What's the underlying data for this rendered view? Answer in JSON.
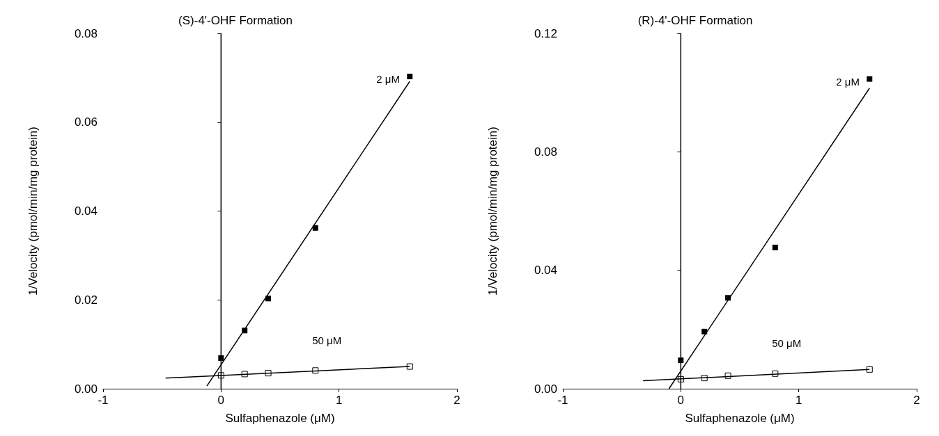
{
  "chart_data": [
    {
      "type": "scatter",
      "title": "(S)-4'-OHF Formation",
      "xlabel": "Sulfaphenazole (μM)",
      "ylabel": "1/Velocity (pmol/min/mg protein)",
      "xlim": [
        -1,
        2
      ],
      "xticks": [
        -1,
        0,
        1,
        2
      ],
      "ylim": [
        0,
        0.08
      ],
      "yticks": [
        {
          "value": 0,
          "label": "0.00"
        },
        0.02,
        0.04,
        0.06,
        0.08
      ],
      "grid": false,
      "legend": false,
      "ref_lines": [
        {
          "axis": "x",
          "value": 0,
          "color": "#000000"
        }
      ],
      "series": [
        {
          "type": "scatter",
          "name": "2 μM",
          "color": "#000000",
          "marker": "square",
          "x": [
            0,
            0.2,
            0.4,
            0.8,
            1.6
          ],
          "values": [
            0.0069,
            0.0131,
            0.0203,
            0.0362,
            0.0703
          ]
        },
        {
          "type": "scatter",
          "name": "50 μM",
          "color": "#000000",
          "marker": "square",
          "x": [
            0,
            0.2,
            0.4,
            0.8,
            1.6
          ],
          "values": [
            0.003,
            0.0033,
            0.0035,
            0.0041,
            0.005
          ]
        },
        {
          "type": "line",
          "color": "#000000",
          "marker": "none",
          "x": [
            -0.12,
            1.6
          ],
          "values": [
            0.0006,
            0.0692
          ]
        },
        {
          "type": "line",
          "color": "#000000",
          "marker": "none",
          "x": [
            -0.47,
            1.6
          ],
          "values": [
            0.0024,
            0.005
          ]
        }
      ]
    },
    {
      "type": "scatter",
      "title": "(R)-4'-OHF Formation",
      "xlabel": "Sulfaphenazole (μM)",
      "ylabel": "1/Velocity (pmol/min/mg protein)",
      "xlim": [
        -1,
        2
      ],
      "xticks": [
        -1,
        0,
        1,
        2
      ],
      "ylim": [
        0,
        0.12
      ],
      "yticks": [
        {
          "value": 0,
          "label": "0.00"
        },
        0.04,
        0.08,
        0.12
      ],
      "grid": false,
      "legend": false,
      "ref_lines": [
        {
          "axis": "x",
          "value": 0,
          "color": "#000000"
        }
      ],
      "series": [
        {
          "type": "scatter",
          "name": "2 μM",
          "color": "#000000",
          "marker": "square",
          "x": [
            0,
            0.2,
            0.4,
            0.8,
            1.6
          ],
          "values": [
            0.0096,
            0.0193,
            0.0307,
            0.0477,
            0.1046
          ]
        },
        {
          "type": "scatter",
          "name": "50 μM",
          "color": "#000000",
          "marker": "square",
          "x": [
            0,
            0.2,
            0.4,
            0.8,
            1.6
          ],
          "values": [
            0.0032,
            0.0036,
            0.0044,
            0.0051,
            0.0065
          ]
        },
        {
          "type": "line",
          "color": "#000000",
          "marker": "none",
          "x": [
            -0.1,
            1.6
          ],
          "values": [
            0,
            0.1015
          ]
        },
        {
          "type": "line",
          "color": "#000000",
          "marker": "none",
          "x": [
            -0.32,
            1.6
          ],
          "values": [
            0.0027,
            0.0065
          ]
        }
      ]
    }
  ]
}
